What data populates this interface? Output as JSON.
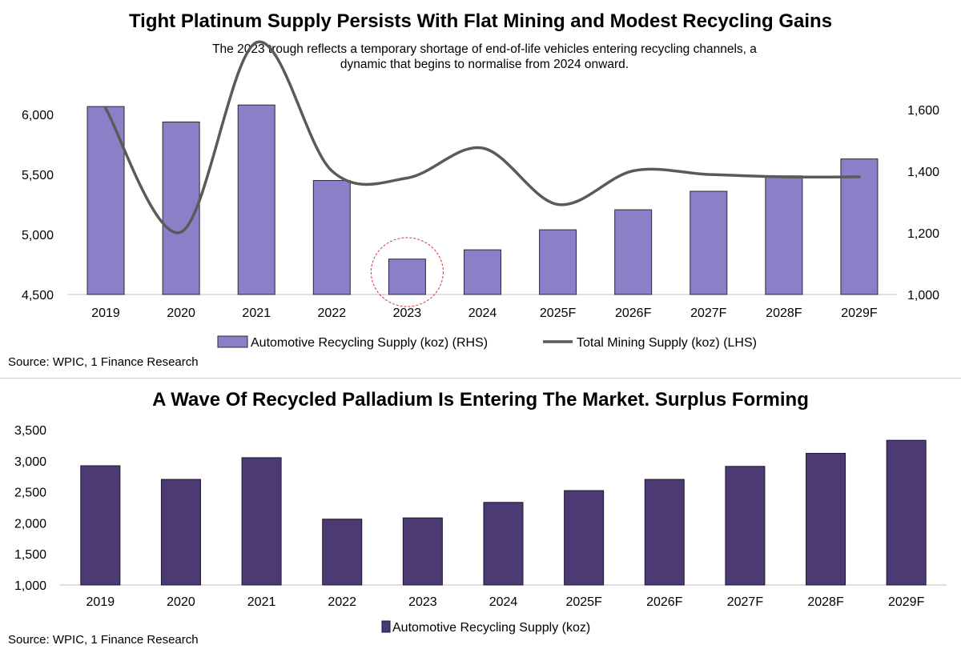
{
  "chart_data": [
    {
      "type": "bar+line",
      "title": "Tight Platinum Supply Persists With Flat Mining and Modest Recycling Gains",
      "subtitle": "The 2023 trough reflects a temporary shortage of end-of-life vehicles entering recycling channels, a dynamic that begins to normalise from 2024 onward.",
      "categories": [
        "2019",
        "2020",
        "2021",
        "2022",
        "2023",
        "2024",
        "2025F",
        "2026F",
        "2027F",
        "2028F",
        "2029F"
      ],
      "series": [
        {
          "name": "Automotive Recycling Supply (koz) (RHS)",
          "kind": "bar",
          "axis": "right",
          "color": "#8b7fc8",
          "values": [
            1610,
            1560,
            1615,
            1370,
            1115,
            1145,
            1210,
            1275,
            1335,
            1385,
            1440
          ]
        },
        {
          "name": "Total Mining Supply (koz) (LHS)",
          "kind": "line",
          "axis": "left",
          "color": "#5a5a5a",
          "values": [
            6050,
            5020,
            6600,
            5530,
            5470,
            5720,
            5250,
            5530,
            5500,
            5480,
            5480
          ]
        }
      ],
      "left_axis": {
        "min": 4500,
        "max": 6000,
        "ticks": [
          "4,500",
          "5,000",
          "5,500",
          "6,000"
        ],
        "tick_values": [
          4500,
          5000,
          5500,
          6000
        ]
      },
      "right_axis": {
        "min": 1000,
        "max": 1600,
        "ticks": [
          "1,000",
          "1,200",
          "1,400",
          "1,600"
        ],
        "tick_values": [
          1000,
          1200,
          1400,
          1600
        ]
      },
      "highlight": "2023",
      "source": "Source: WPIC, 1 Finance Research"
    },
    {
      "type": "bar",
      "title": "A Wave Of Recycled Palladium Is Entering The Market. Surplus Forming",
      "categories": [
        "2019",
        "2020",
        "2021",
        "2022",
        "2023",
        "2024",
        "2025F",
        "2026F",
        "2027F",
        "2028F",
        "2029F"
      ],
      "series": [
        {
          "name": "Automotive Recycling Supply (koz)",
          "color": "#4b3a73",
          "values": [
            2920,
            2700,
            3050,
            2060,
            2080,
            2330,
            2520,
            2700,
            2910,
            3120,
            3330
          ]
        }
      ],
      "y_axis": {
        "min": 1000,
        "max": 3500,
        "ticks": [
          "1,000",
          "1,500",
          "2,000",
          "2,500",
          "3,000",
          "3,500"
        ],
        "tick_values": [
          1000,
          1500,
          2000,
          2500,
          3000,
          3500
        ]
      },
      "source": "Source: WPIC, 1 Finance Research"
    }
  ]
}
